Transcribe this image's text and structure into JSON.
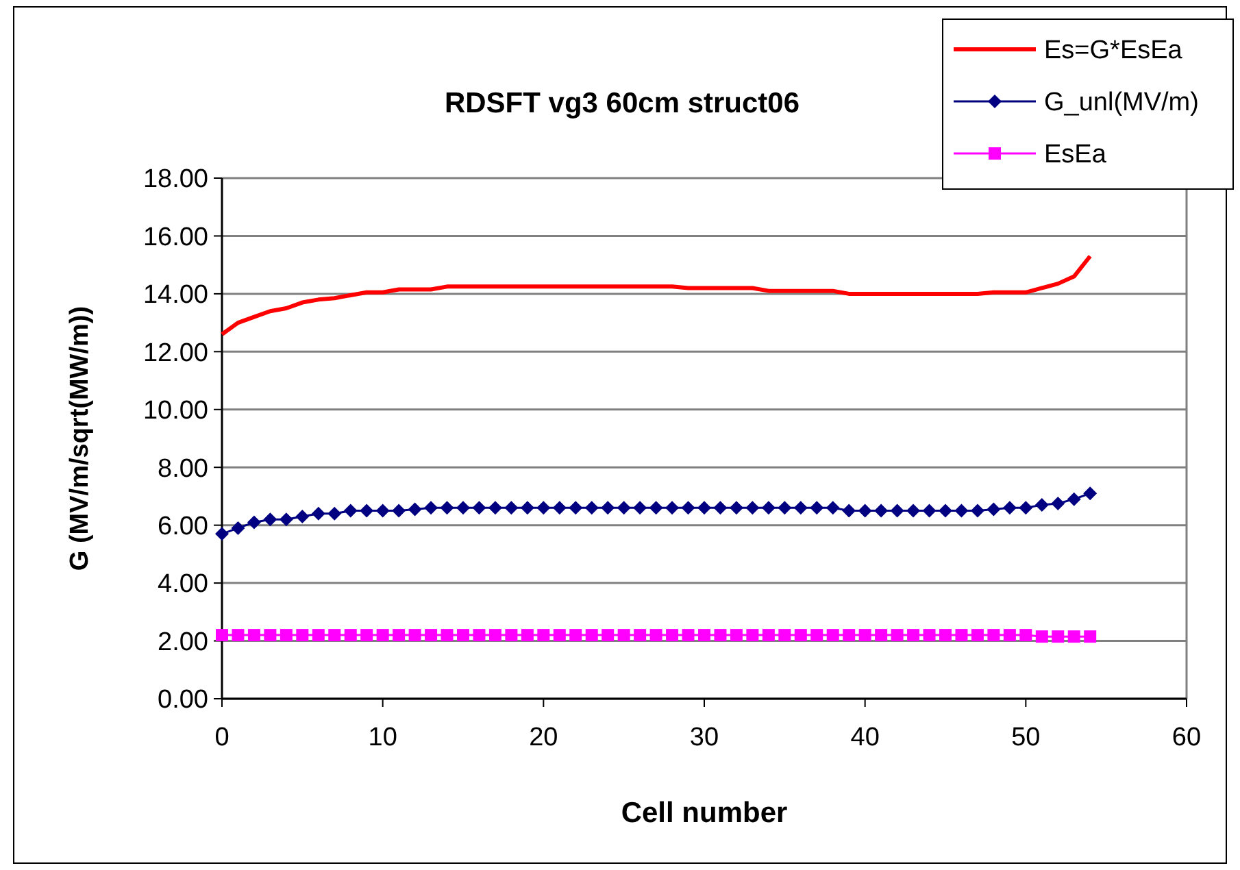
{
  "chart_data": {
    "type": "line",
    "title": "RDSFT vg3 60cm struct06",
    "xlabel": "Cell number",
    "ylabel": "G (MV/m/sqrt(MW/m))",
    "x": [
      0,
      1,
      2,
      3,
      4,
      5,
      6,
      7,
      8,
      9,
      10,
      11,
      12,
      13,
      14,
      15,
      16,
      17,
      18,
      19,
      20,
      21,
      22,
      23,
      24,
      25,
      26,
      27,
      28,
      29,
      30,
      31,
      32,
      33,
      34,
      35,
      36,
      37,
      38,
      39,
      40,
      41,
      42,
      43,
      44,
      45,
      46,
      47,
      48,
      49,
      50,
      51,
      52,
      53,
      54
    ],
    "xlim": [
      0,
      60
    ],
    "xticks": [
      0,
      10,
      20,
      30,
      40,
      50,
      60
    ],
    "ylim": [
      0,
      18
    ],
    "yticks": [
      {
        "value": 0,
        "label": "0.00"
      },
      {
        "value": 2,
        "label": "2.00"
      },
      {
        "value": 4,
        "label": "4.00"
      },
      {
        "value": 6,
        "label": "6.00"
      },
      {
        "value": 8,
        "label": "8.00"
      },
      {
        "value": 10,
        "label": "10.00"
      },
      {
        "value": 12,
        "label": "12.00"
      },
      {
        "value": 14,
        "label": "14.00"
      },
      {
        "value": 16,
        "label": "16.00"
      },
      {
        "value": 18,
        "label": "18.00"
      }
    ],
    "grid": "y",
    "legend": "top right",
    "series": [
      {
        "name": "Es=G*EsEa",
        "color": "#ff0000",
        "marker": "none",
        "values": [
          12.6,
          13.0,
          13.2,
          13.4,
          13.5,
          13.7,
          13.8,
          13.85,
          13.95,
          14.05,
          14.05,
          14.15,
          14.15,
          14.15,
          14.25,
          14.25,
          14.25,
          14.25,
          14.25,
          14.25,
          14.25,
          14.25,
          14.25,
          14.25,
          14.25,
          14.25,
          14.25,
          14.25,
          14.25,
          14.2,
          14.2,
          14.2,
          14.2,
          14.2,
          14.1,
          14.1,
          14.1,
          14.1,
          14.1,
          14.0,
          14.0,
          14.0,
          14.0,
          14.0,
          14.0,
          14.0,
          14.0,
          14.0,
          14.05,
          14.05,
          14.05,
          14.2,
          14.35,
          14.6,
          15.3
        ]
      },
      {
        "name": "G_unl(MV/m)",
        "color": "#000080",
        "marker": "diamond",
        "values": [
          5.7,
          5.9,
          6.1,
          6.2,
          6.2,
          6.3,
          6.4,
          6.4,
          6.5,
          6.5,
          6.5,
          6.5,
          6.55,
          6.6,
          6.6,
          6.6,
          6.6,
          6.6,
          6.6,
          6.6,
          6.6,
          6.6,
          6.6,
          6.6,
          6.6,
          6.6,
          6.6,
          6.6,
          6.6,
          6.6,
          6.6,
          6.6,
          6.6,
          6.6,
          6.6,
          6.6,
          6.6,
          6.6,
          6.6,
          6.5,
          6.5,
          6.5,
          6.5,
          6.5,
          6.5,
          6.5,
          6.5,
          6.5,
          6.55,
          6.6,
          6.6,
          6.7,
          6.75,
          6.9,
          7.1
        ]
      },
      {
        "name": "EsEa",
        "color": "#ff00ff",
        "marker": "square",
        "values": [
          2.2,
          2.2,
          2.2,
          2.2,
          2.2,
          2.2,
          2.2,
          2.2,
          2.2,
          2.2,
          2.2,
          2.2,
          2.2,
          2.2,
          2.2,
          2.2,
          2.2,
          2.2,
          2.2,
          2.2,
          2.2,
          2.2,
          2.2,
          2.2,
          2.2,
          2.2,
          2.2,
          2.2,
          2.2,
          2.2,
          2.2,
          2.2,
          2.2,
          2.2,
          2.2,
          2.2,
          2.2,
          2.2,
          2.2,
          2.2,
          2.2,
          2.2,
          2.2,
          2.2,
          2.2,
          2.2,
          2.2,
          2.2,
          2.2,
          2.2,
          2.2,
          2.15,
          2.15,
          2.15,
          2.15
        ]
      }
    ]
  }
}
